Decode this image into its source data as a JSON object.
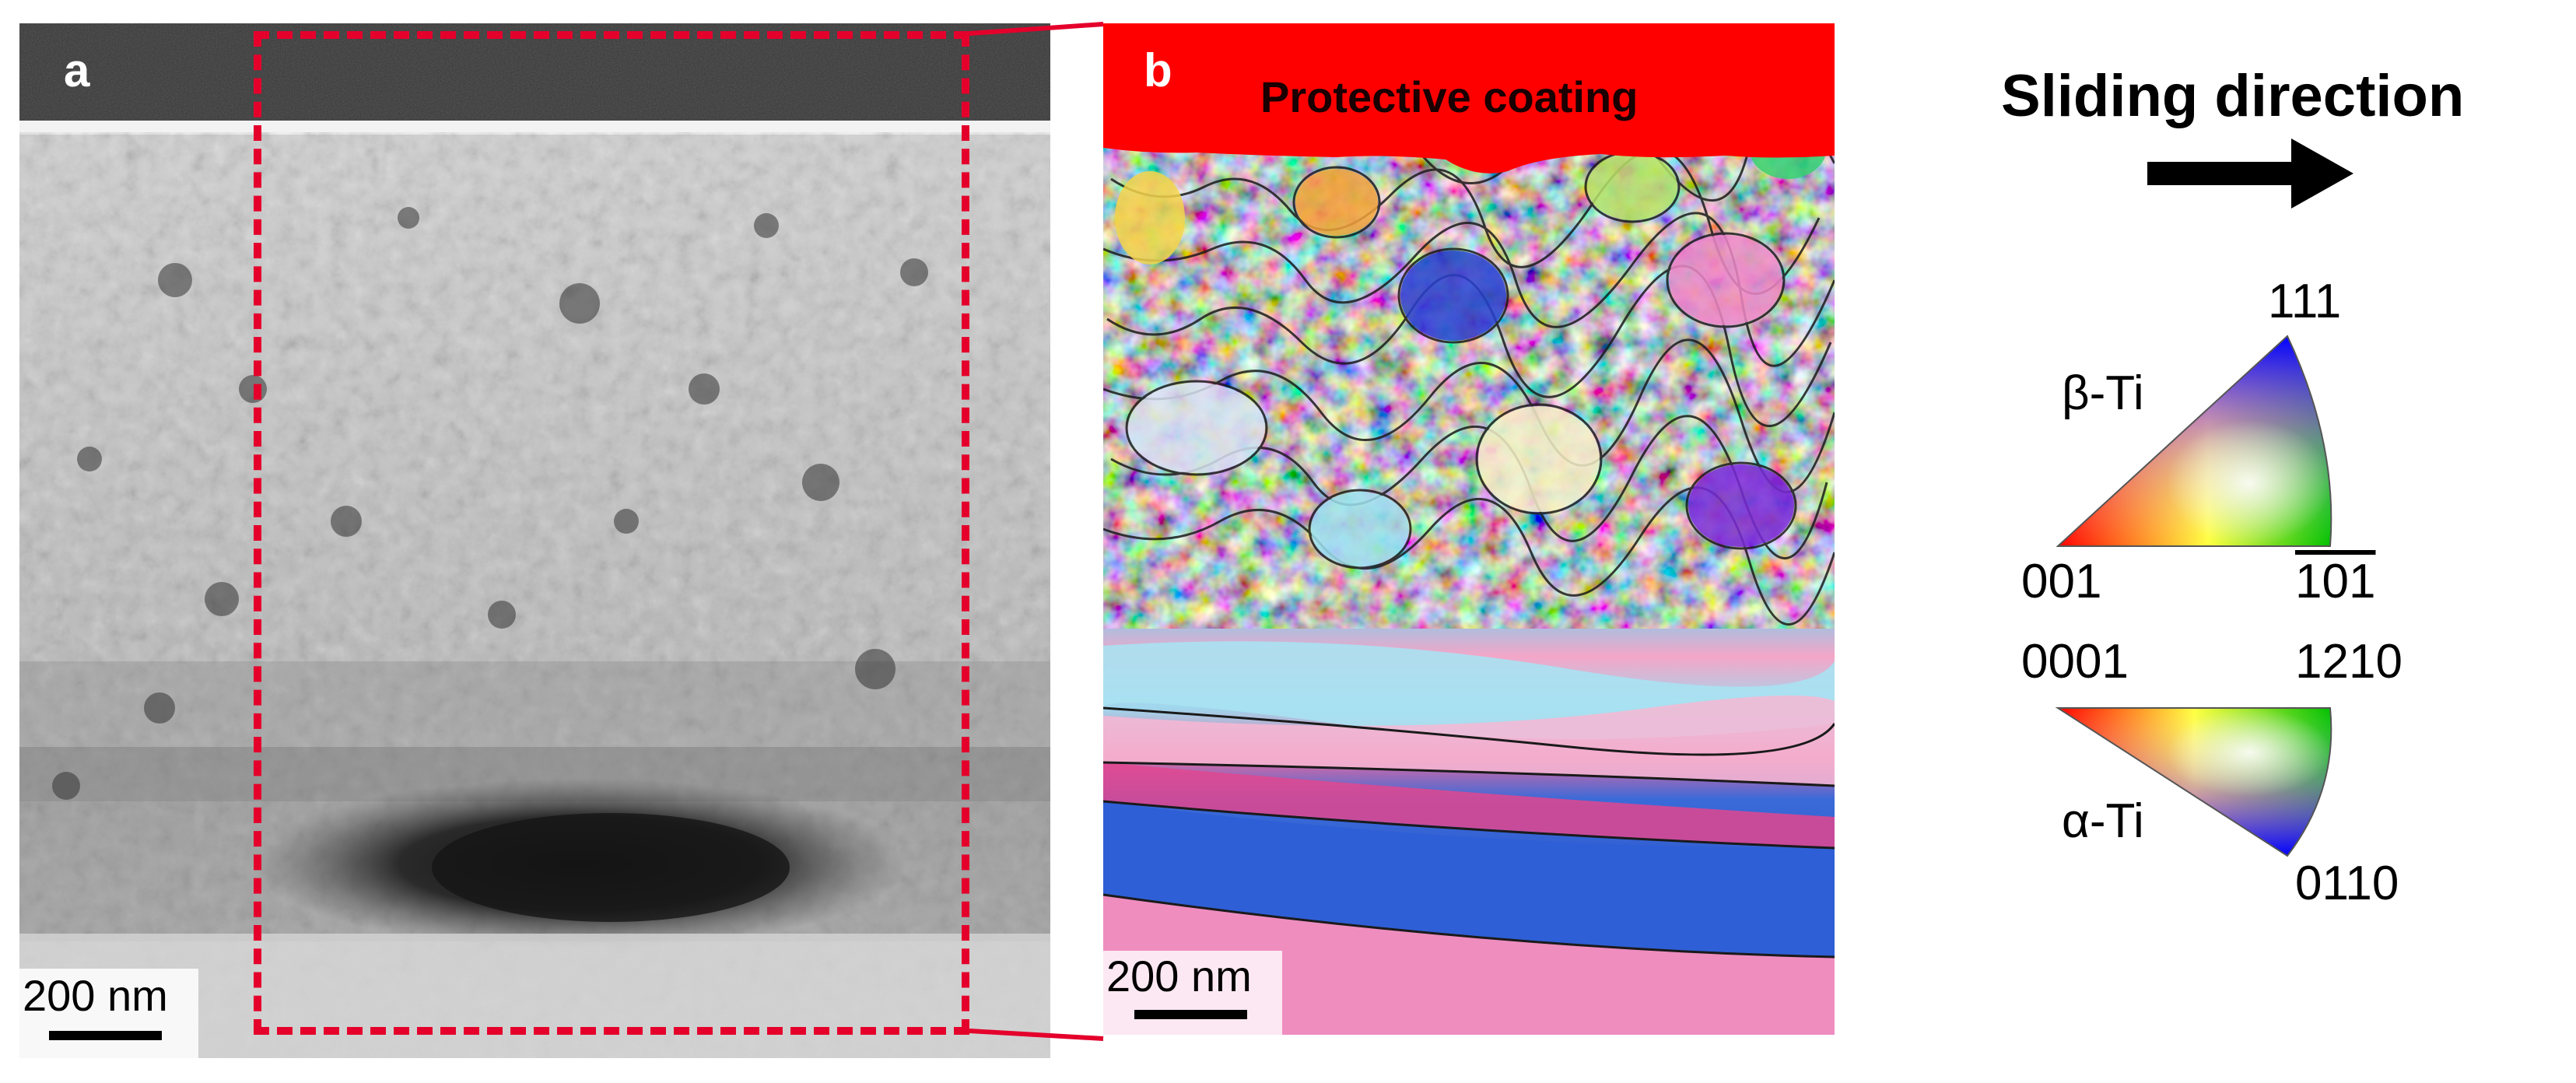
{
  "panel_a": {
    "label": "a",
    "scale_bar_text": "200 nm"
  },
  "panel_b": {
    "label": "b",
    "coating_label": "Protective coating",
    "scale_bar_text": "200 nm"
  },
  "legend": {
    "title": "Sliding direction",
    "beta": {
      "name": "β-Ti",
      "corner_top": "111",
      "corner_left": "001",
      "corner_right": "101"
    },
    "alpha": {
      "name": "α-Ti",
      "corner_left": "0001",
      "corner_right": "1210",
      "corner_bottom": "0110"
    }
  },
  "colors": {
    "highlight_box": "#e4002b",
    "coating": "#ff0000",
    "arrow": "#000000"
  }
}
